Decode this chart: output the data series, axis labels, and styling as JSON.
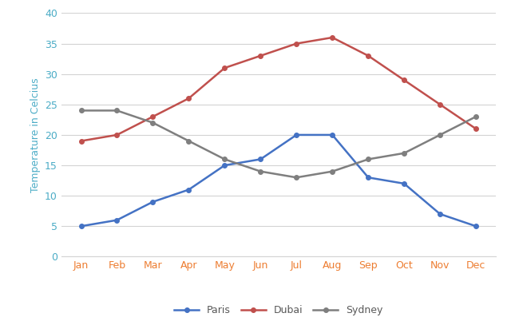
{
  "months": [
    "Jan",
    "Feb",
    "Mar",
    "Apr",
    "May",
    "Jun",
    "Jul",
    "Aug",
    "Sep",
    "Oct",
    "Nov",
    "Dec"
  ],
  "paris": [
    5,
    6,
    9,
    11,
    15,
    16,
    20,
    20,
    13,
    12,
    7,
    5
  ],
  "dubai": [
    19,
    20,
    23,
    26,
    31,
    33,
    35,
    36,
    33,
    29,
    25,
    21
  ],
  "sydney": [
    24,
    24,
    22,
    19,
    16,
    14,
    13,
    14,
    16,
    17,
    20,
    23
  ],
  "paris_color": "#4472C4",
  "dubai_color": "#C0504D",
  "sydney_color": "#7F7F7F",
  "ytick_color": "#4BACC6",
  "xtick_color": "#ED7D31",
  "ylabel": "Temperature in Celcius",
  "ylabel_color": "#4BACC6",
  "ylim": [
    0,
    40
  ],
  "yticks": [
    0,
    5,
    10,
    15,
    20,
    25,
    30,
    35,
    40
  ],
  "grid_color": "#D3D3D3",
  "bg_color": "#FFFFFF",
  "marker": "o",
  "marker_size": 4,
  "linewidth": 1.8,
  "legend_labels": [
    "Paris",
    "Dubai",
    "Sydney"
  ],
  "legend_text_color": "#595959"
}
